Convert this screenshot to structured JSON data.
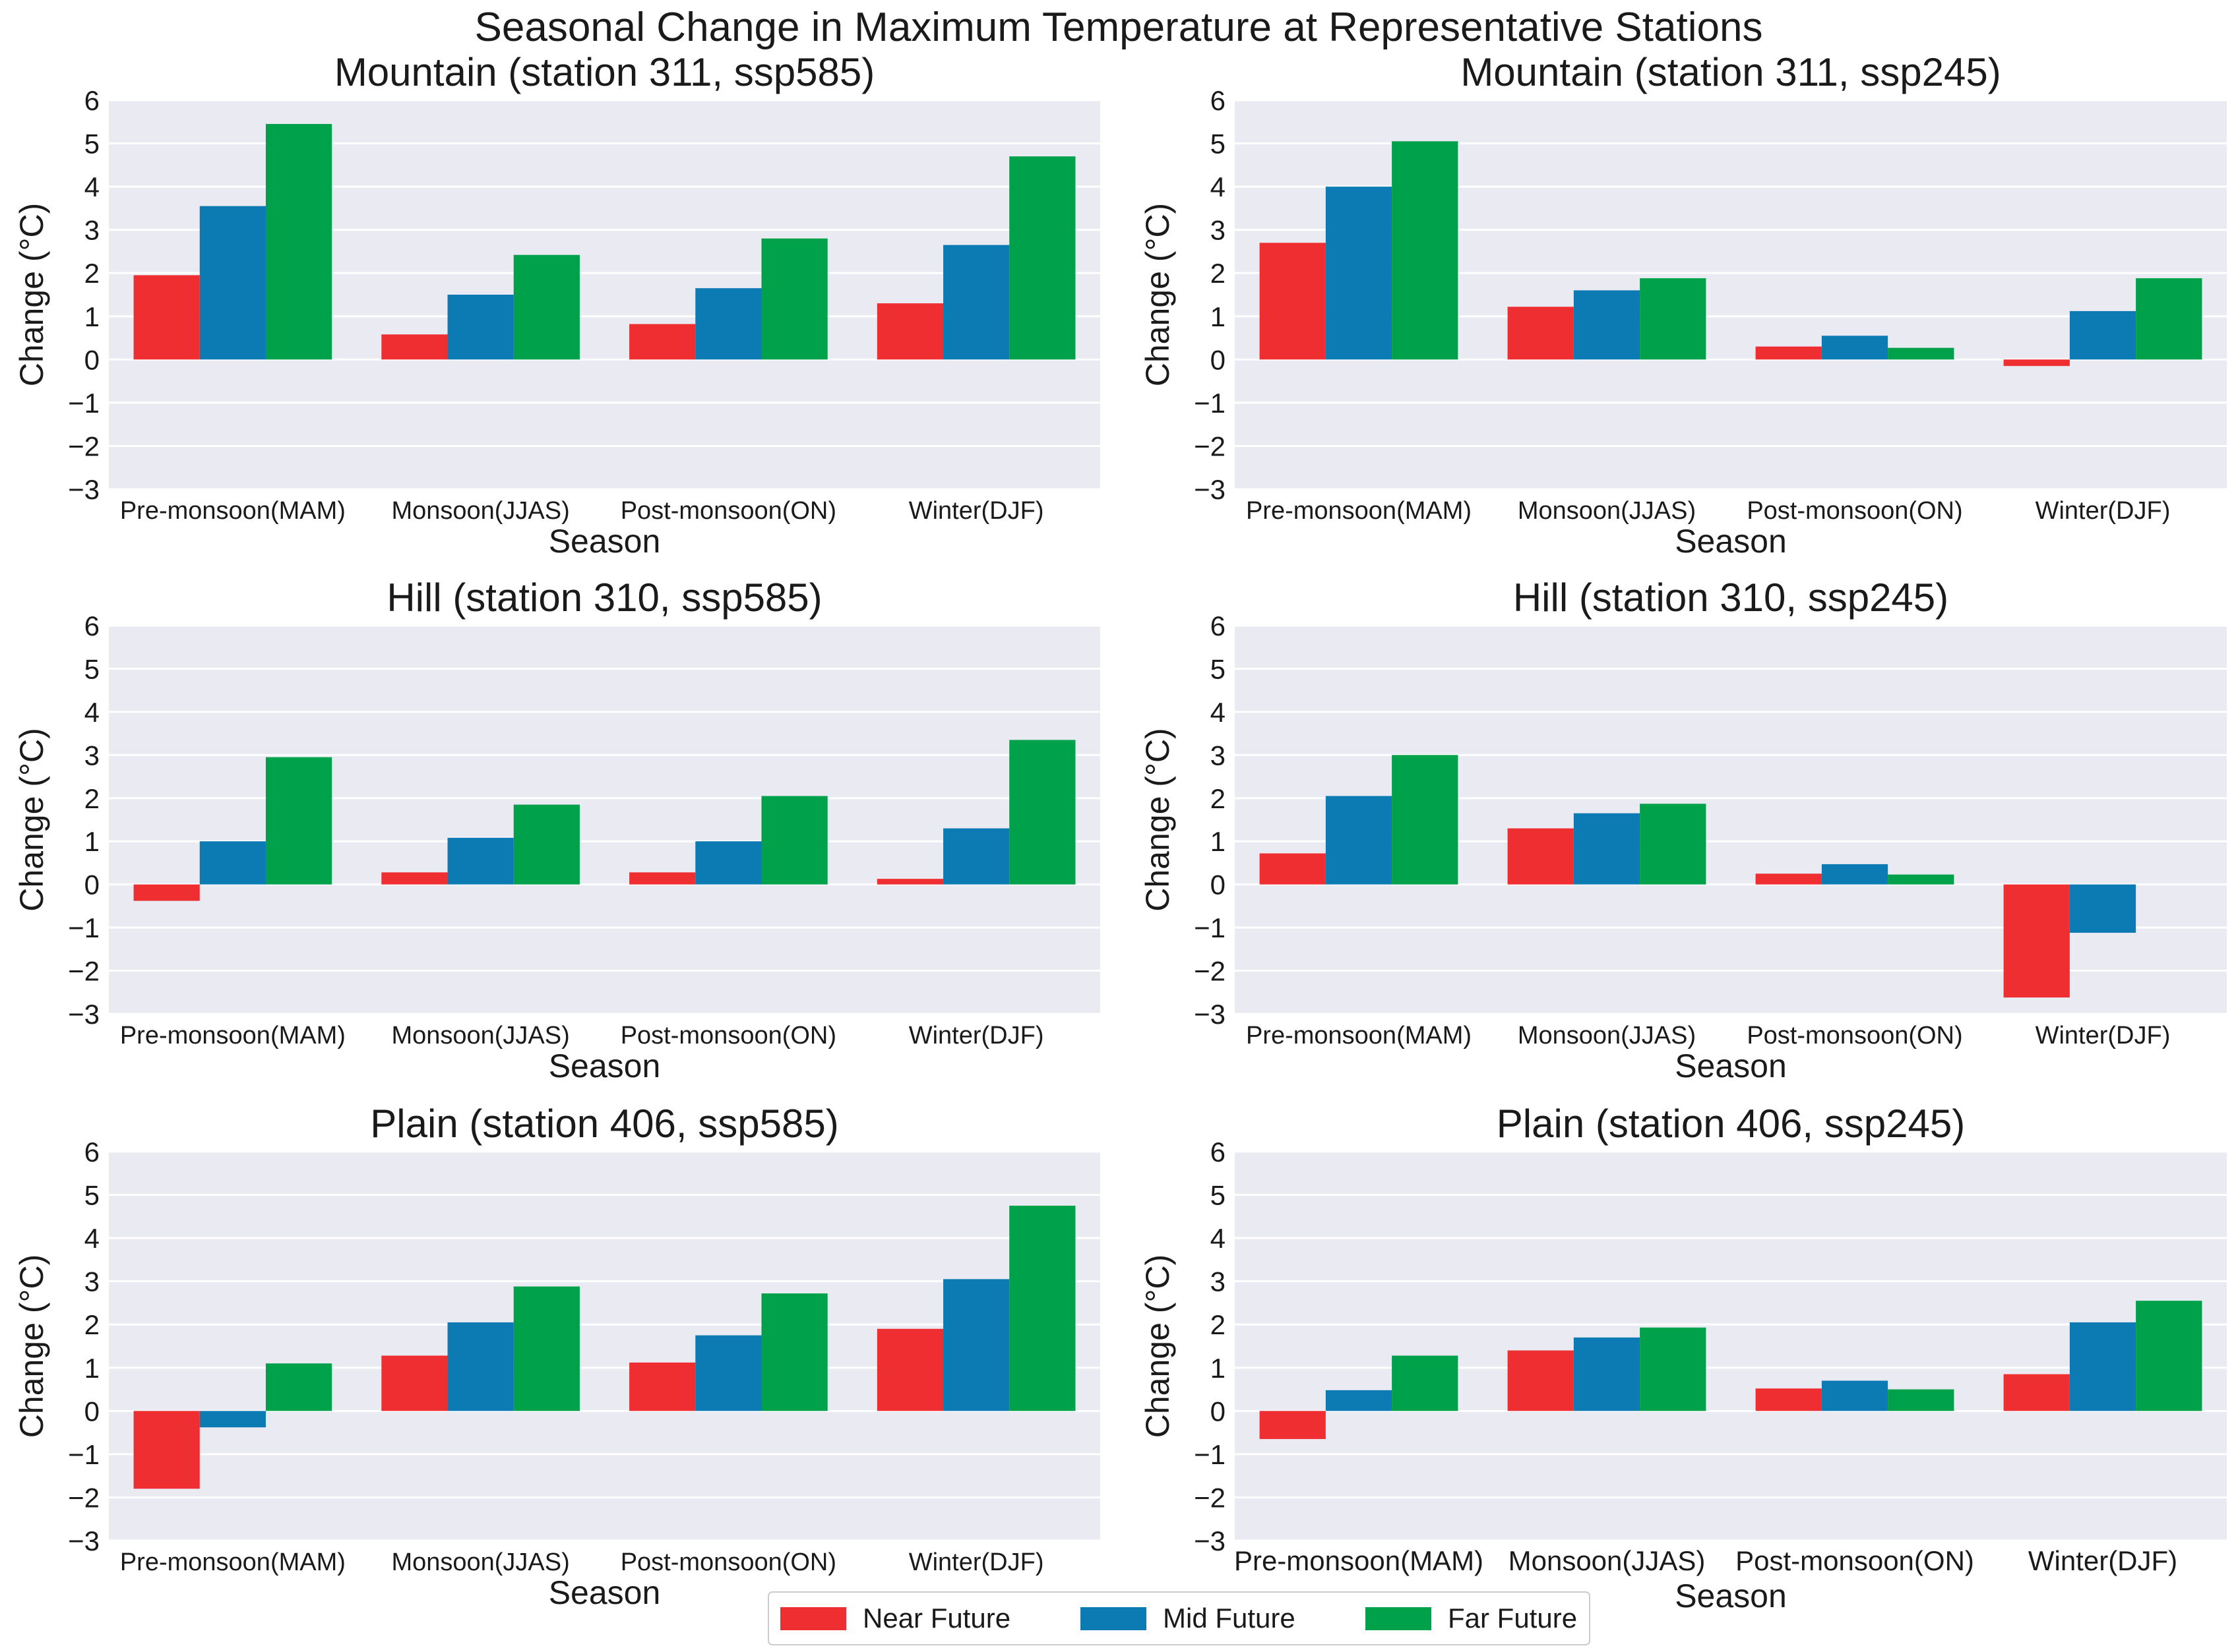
{
  "chart_data": {
    "type": "bar",
    "title": "Seasonal Change in Maximum Temperature at Representative Stations",
    "categories": [
      "Pre-monsoon(MAM)",
      "Monsoon(JJAS)",
      "Post-monsoon(ON)",
      "Winter(DJF)"
    ],
    "series_names": [
      "Near Future",
      "Mid Future",
      "Far Future"
    ],
    "colors": [
      "#ee2e31",
      "#0c7bb3",
      "#00a14b"
    ],
    "panel_bg": "#eaeaf2",
    "xlabel": "Season",
    "ylabel": "Change (°C)",
    "ylim": [
      -3,
      6
    ],
    "yticks": [
      "6",
      "5",
      "4",
      "3",
      "2",
      "1",
      "0",
      "−1",
      "−2",
      "−3"
    ],
    "grid": true,
    "legend_position": "bottom-center",
    "panels": [
      {
        "title": "Mountain (station 311, ssp585)",
        "series": [
          {
            "name": "Near Future",
            "values": [
              1.95,
              0.58,
              0.82,
              1.3
            ]
          },
          {
            "name": "Mid Future",
            "values": [
              3.55,
              1.5,
              1.65,
              2.65
            ]
          },
          {
            "name": "Far Future",
            "values": [
              5.45,
              2.42,
              2.8,
              4.7
            ]
          }
        ]
      },
      {
        "title": "Mountain (station 311, ssp245)",
        "series": [
          {
            "name": "Near Future",
            "values": [
              2.7,
              1.22,
              0.3,
              -0.15
            ]
          },
          {
            "name": "Mid Future",
            "values": [
              4.0,
              1.6,
              0.55,
              1.12
            ]
          },
          {
            "name": "Far Future",
            "values": [
              5.05,
              1.88,
              0.27,
              1.88
            ]
          }
        ]
      },
      {
        "title": "Hill (station 310, ssp585)",
        "series": [
          {
            "name": "Near Future",
            "values": [
              -0.38,
              0.28,
              0.28,
              0.13
            ]
          },
          {
            "name": "Mid Future",
            "values": [
              1.0,
              1.08,
              1.0,
              1.3
            ]
          },
          {
            "name": "Far Future",
            "values": [
              2.95,
              1.85,
              2.05,
              3.35
            ]
          }
        ]
      },
      {
        "title": "Hill (station 310, ssp245)",
        "series": [
          {
            "name": "Near Future",
            "values": [
              0.72,
              1.3,
              0.25,
              -2.62
            ]
          },
          {
            "name": "Mid Future",
            "values": [
              2.05,
              1.65,
              0.47,
              -1.12
            ]
          },
          {
            "name": "Far Future",
            "values": [
              3.0,
              1.87,
              0.23,
              0
            ]
          }
        ]
      },
      {
        "title": "Plain (station 406, ssp585)",
        "series": [
          {
            "name": "Near Future",
            "values": [
              -1.8,
              1.28,
              1.12,
              1.9
            ]
          },
          {
            "name": "Mid Future",
            "values": [
              -0.38,
              2.05,
              1.75,
              3.05
            ]
          },
          {
            "name": "Far Future",
            "values": [
              1.1,
              2.88,
              2.72,
              4.75
            ]
          }
        ]
      },
      {
        "title": "Plain (station 406, ssp245)",
        "series": [
          {
            "name": "Near Future",
            "values": [
              -0.65,
              1.4,
              0.52,
              0.85
            ]
          },
          {
            "name": "Mid Future",
            "values": [
              0.48,
              1.7,
              0.7,
              2.05
            ]
          },
          {
            "name": "Far Future",
            "values": [
              1.28,
              1.93,
              0.5,
              2.55
            ]
          }
        ]
      }
    ]
  }
}
